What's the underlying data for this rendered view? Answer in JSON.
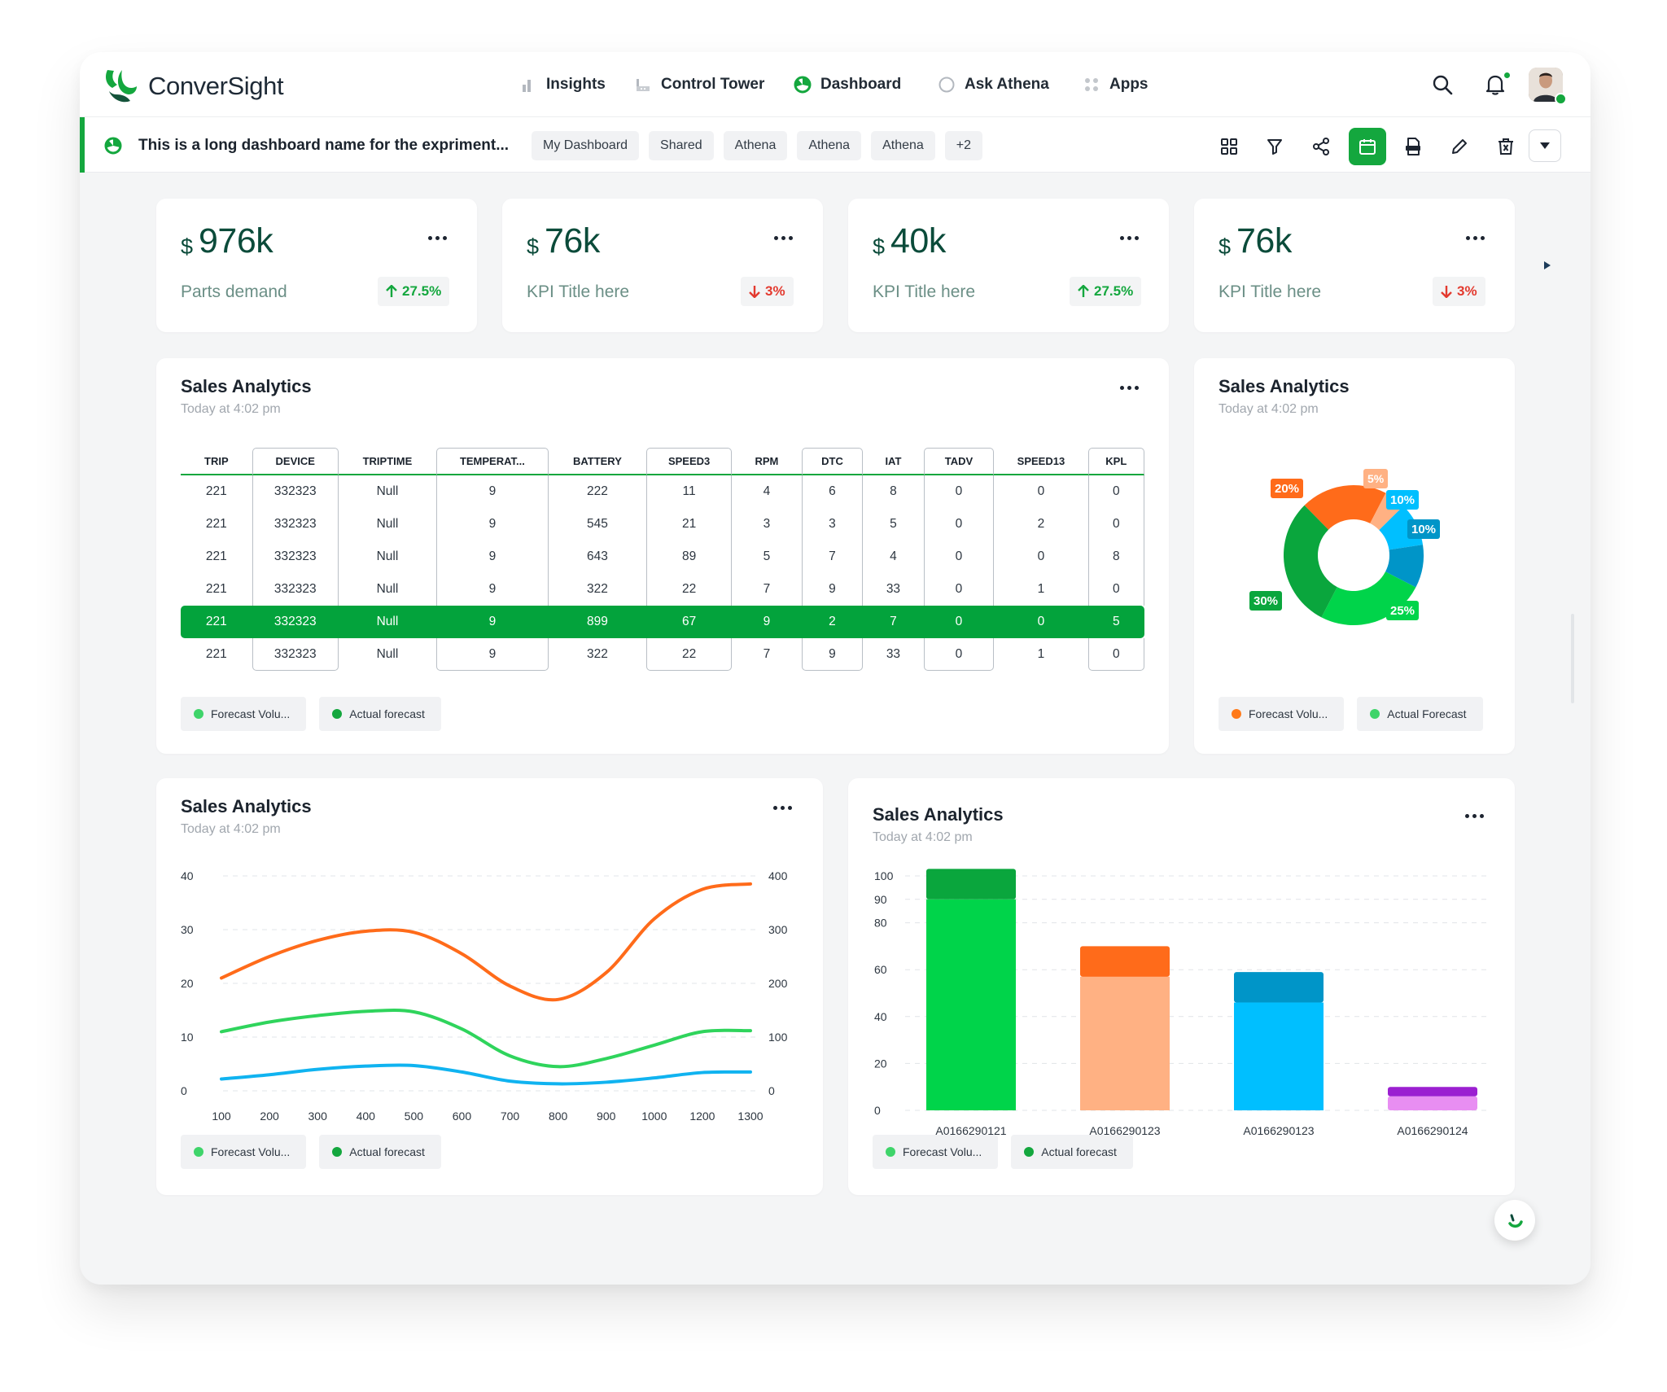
{
  "brand": {
    "name": "ConverSight"
  },
  "nav": [
    {
      "label": "Insights",
      "icon": "bar-chart-icon"
    },
    {
      "label": "Control Tower",
      "icon": "tower-icon"
    },
    {
      "label": "Dashboard",
      "icon": "dashboard-icon",
      "active": true
    },
    {
      "label": "Ask Athena",
      "icon": "circle-icon"
    },
    {
      "label": "Apps",
      "icon": "grid-dots-icon"
    }
  ],
  "dashboard": {
    "name": "This is a long dashboard name for the expriment...",
    "tags": [
      "My Dashboard",
      "Shared",
      "Athena",
      "Athena",
      "Athena",
      "+2"
    ]
  },
  "toolbar": [
    "layout-icon",
    "filter-icon",
    "share-icon",
    "calendar-icon",
    "print-icon",
    "edit-icon",
    "delete-icon",
    "chevron-down-icon"
  ],
  "kpis": [
    {
      "currency": "$",
      "value": "976k",
      "title": "Parts demand",
      "delta": "27.5%",
      "direction": "up"
    },
    {
      "currency": "$",
      "value": "76k",
      "title": "KPI Title here",
      "delta": "3%",
      "direction": "down"
    },
    {
      "currency": "$",
      "value": "40k",
      "title": "KPI Title here",
      "delta": "27.5%",
      "direction": "up"
    },
    {
      "currency": "$",
      "value": "76k",
      "title": "KPI Title here",
      "delta": "3%",
      "direction": "down"
    }
  ],
  "table_card": {
    "title": "Sales Analytics",
    "subtitle": "Today at 4:02 pm",
    "columns": [
      "TRIP",
      "DEVICE",
      "TRIPTIME",
      "TEMPERAT...",
      "BATTERY",
      "SPEED3",
      "RPM",
      "DTC",
      "IAT",
      "TADV",
      "SPEED13",
      "KPL"
    ],
    "rows": [
      [
        "221",
        "332323",
        "Null",
        "9",
        "222",
        "11",
        "4",
        "6",
        "8",
        "0",
        "0",
        "0"
      ],
      [
        "221",
        "332323",
        "Null",
        "9",
        "545",
        "21",
        "3",
        "3",
        "5",
        "0",
        "2",
        "0"
      ],
      [
        "221",
        "332323",
        "Null",
        "9",
        "643",
        "89",
        "5",
        "7",
        "4",
        "0",
        "0",
        "8"
      ],
      [
        "221",
        "332323",
        "Null",
        "9",
        "322",
        "22",
        "7",
        "9",
        "33",
        "0",
        "1",
        "0"
      ],
      [
        "221",
        "332323",
        "Null",
        "9",
        "899",
        "67",
        "9",
        "2",
        "7",
        "0",
        "0",
        "5"
      ],
      [
        "221",
        "332323",
        "Null",
        "9",
        "322",
        "22",
        "7",
        "9",
        "33",
        "0",
        "1",
        "0"
      ]
    ],
    "highlighted_row": 4,
    "legend": [
      {
        "label": "Forecast Volu...",
        "color": "#3fd46a"
      },
      {
        "label": "Actual forecast",
        "color": "#14a73e"
      }
    ]
  },
  "donut_card": {
    "title": "Sales Analytics",
    "subtitle": "Today at 4:02 pm",
    "legend": [
      {
        "label": "Forecast Volu...",
        "color": "#ff7a1a"
      },
      {
        "label": "Actual Forecast",
        "color": "#3fd46a"
      }
    ],
    "chart_data": {
      "type": "pie",
      "slices": [
        {
          "label": "20%",
          "value": 20,
          "color": "#ff6b1a"
        },
        {
          "label": "5%",
          "value": 5,
          "color": "#ffb183"
        },
        {
          "label": "10%",
          "value": 10,
          "color": "#00bfff"
        },
        {
          "label": "10%",
          "value": 10,
          "color": "#0095c8"
        },
        {
          "label": "25%",
          "value": 25,
          "color": "#00d44a"
        },
        {
          "label": "30%",
          "value": 30,
          "color": "#0aa63d"
        }
      ]
    }
  },
  "line_card": {
    "title": "Sales Analytics",
    "subtitle": "Today at 4:02 pm",
    "legend": [
      {
        "label": "Forecast Volu...",
        "color": "#3fd46a"
      },
      {
        "label": "Actual forecast",
        "color": "#14a73e"
      }
    ],
    "chart_data": {
      "type": "line",
      "x": [
        "100",
        "200",
        "300",
        "400",
        "500",
        "600",
        "700",
        "800",
        "900",
        "1000",
        "1200",
        "1300"
      ],
      "y_left_ticks": [
        0,
        10,
        20,
        30,
        40
      ],
      "y_right_ticks": [
        0,
        100,
        200,
        300,
        400
      ],
      "ylim": [
        0,
        40
      ],
      "series": [
        {
          "color": "#ff6b1a",
          "values": [
            21,
            25,
            28,
            29.7,
            29.5,
            25.5,
            19.5,
            17,
            22,
            32,
            37.5,
            38.5
          ]
        },
        {
          "color": "#2fd45c",
          "values": [
            11,
            12.8,
            14,
            14.8,
            14.7,
            11.5,
            6.5,
            4.5,
            6,
            8.5,
            11,
            11.2
          ]
        },
        {
          "color": "#10b3f0",
          "values": [
            2.2,
            3,
            4,
            4.6,
            4.7,
            3.5,
            1.8,
            1.3,
            1.6,
            2.4,
            3.4,
            3.5
          ]
        }
      ]
    }
  },
  "bar_card": {
    "title": "Sales Analytics",
    "subtitle": "Today at 4:02 pm",
    "legend": [
      {
        "label": "Forecast Volu...",
        "color": "#3fd46a"
      },
      {
        "label": "Actual forecast",
        "color": "#14a73e"
      }
    ],
    "chart_data": {
      "type": "bar",
      "categories": [
        "A0166290121",
        "A0166290123",
        "A0166290123",
        "A0166290124"
      ],
      "y_ticks": [
        0,
        20,
        40,
        60,
        80,
        90,
        100
      ],
      "ylim": [
        0,
        100
      ],
      "series": [
        {
          "values": [
            90,
            57,
            46,
            6
          ],
          "colors": [
            "#00d44a",
            "#ffb183",
            "#00bfff",
            "#e88ef2"
          ]
        },
        {
          "values": [
            13,
            13,
            13,
            4
          ],
          "colors": [
            "#0aa63d",
            "#ff6b1a",
            "#0095c8",
            "#9b1fd1"
          ]
        }
      ]
    }
  }
}
